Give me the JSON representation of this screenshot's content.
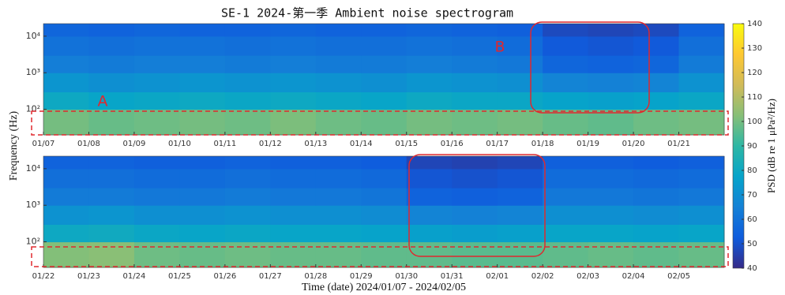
{
  "chart_data": [
    {
      "type": "heatmap",
      "title": "SE-1 2024-第一季 Ambient noise spectrogram",
      "ylabel": "Frequency (Hz)",
      "categories": [
        "01/07",
        "01/08",
        "01/09",
        "01/10",
        "01/11",
        "01/12",
        "01/13",
        "01/14",
        "01/15",
        "01/16",
        "01/17",
        "01/18",
        "01/19",
        "01/20",
        "01/21"
      ],
      "y_edges": [
        20,
        100,
        300,
        1000,
        3000,
        10000,
        22000
      ],
      "values": [
        [
          100,
          98,
          99,
          100,
          99,
          101,
          99,
          98,
          100,
          99,
          100,
          98,
          97,
          99,
          100
        ],
        [
          80,
          78,
          79,
          80,
          79,
          80,
          79,
          78,
          80,
          79,
          79,
          77,
          76,
          77,
          79
        ],
        [
          72,
          70,
          71,
          72,
          71,
          72,
          71,
          70,
          72,
          71,
          70,
          66,
          65,
          66,
          71
        ],
        [
          64,
          63,
          64,
          64,
          63,
          64,
          63,
          63,
          64,
          63,
          62,
          56,
          55,
          56,
          63
        ],
        [
          60,
          59,
          60,
          60,
          59,
          60,
          59,
          59,
          60,
          59,
          58,
          52,
          51,
          52,
          59
        ],
        [
          56,
          55,
          56,
          55,
          55,
          56,
          55,
          55,
          56,
          55,
          54,
          48,
          47,
          48,
          55
        ]
      ],
      "ylim": [
        20,
        22000
      ],
      "log_y": true,
      "yticks": [
        {
          "value": 100,
          "label": "10²"
        },
        {
          "value": 1000,
          "label": "10³"
        },
        {
          "value": 10000,
          "label": "10⁴"
        }
      ],
      "annotations": [
        "A",
        "B"
      ],
      "colorbar": {
        "label": "PSD (dB re 1 μPa²/Hz)",
        "lim": [
          40,
          140
        ],
        "ticks": [
          40,
          50,
          60,
          70,
          80,
          90,
          100,
          110,
          120,
          130,
          140
        ],
        "colormap": [
          "#352a87",
          "#0f5cdd",
          "#1481d6",
          "#06a4ca",
          "#2eb7a4",
          "#87bf77",
          "#d1bb59",
          "#fec832",
          "#f9fb0e"
        ]
      }
    },
    {
      "type": "heatmap",
      "xlabel": "Time (date) 2024/01/07 - 2024/02/05",
      "categories": [
        "01/22",
        "01/23",
        "01/24",
        "01/25",
        "01/26",
        "01/27",
        "01/28",
        "01/29",
        "01/30",
        "01/31",
        "02/01",
        "02/02",
        "02/03",
        "02/04",
        "02/05"
      ],
      "y_edges": [
        20,
        100,
        300,
        1000,
        3000,
        10000,
        22000
      ],
      "values": [
        [
          102,
          103,
          99,
          98,
          99,
          98,
          98,
          97,
          97,
          96,
          96,
          97,
          98,
          97,
          98
        ],
        [
          80,
          81,
          79,
          78,
          79,
          78,
          78,
          77,
          76,
          75,
          76,
          78,
          78,
          77,
          78
        ],
        [
          71,
          72,
          70,
          70,
          71,
          70,
          70,
          69,
          66,
          65,
          66,
          70,
          70,
          69,
          70
        ],
        [
          63,
          63,
          62,
          62,
          63,
          62,
          62,
          61,
          55,
          54,
          55,
          62,
          62,
          61,
          62
        ],
        [
          59,
          59,
          58,
          58,
          59,
          58,
          58,
          57,
          51,
          50,
          51,
          58,
          58,
          57,
          58
        ],
        [
          55,
          55,
          54,
          54,
          55,
          54,
          54,
          53,
          47,
          46,
          47,
          54,
          54,
          53,
          54
        ]
      ],
      "ylim": [
        20,
        22000
      ],
      "log_y": true,
      "yticks": [
        {
          "value": 100,
          "label": "10²"
        },
        {
          "value": 1000,
          "label": "10³"
        },
        {
          "value": 10000,
          "label": "10⁴"
        }
      ]
    }
  ]
}
